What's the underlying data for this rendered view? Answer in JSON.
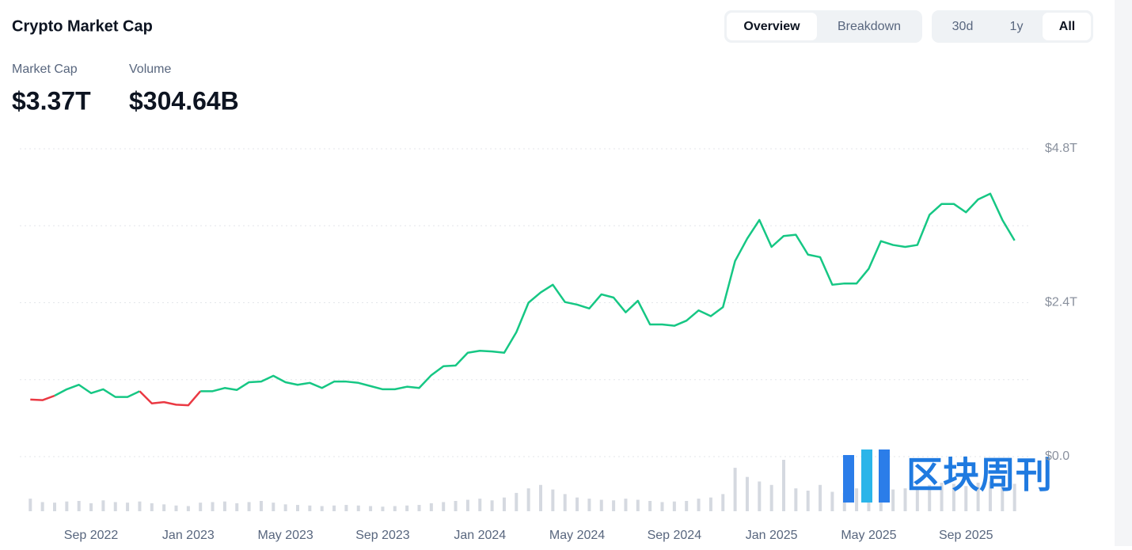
{
  "header": {
    "title": "Crypto Market Cap",
    "tabs": [
      "Overview",
      "Breakdown"
    ],
    "ranges": [
      "30d",
      "1y",
      "All"
    ],
    "stats": [
      {
        "label": "Market Cap",
        "value": "$3.37T"
      },
      {
        "label": "Volume",
        "value": "$304.64B"
      }
    ]
  },
  "watermark": "区块周刊",
  "chart_data": {
    "type": "line",
    "categories": [
      null,
      null,
      null,
      null,
      null,
      "Sep 2022",
      null,
      null,
      null,
      null,
      null,
      null,
      null,
      "Jan 2023",
      null,
      null,
      null,
      null,
      null,
      null,
      null,
      "May 2023",
      null,
      null,
      null,
      null,
      null,
      null,
      null,
      "Sep 2023",
      null,
      null,
      null,
      null,
      null,
      null,
      null,
      "Jan 2024",
      null,
      null,
      null,
      null,
      null,
      null,
      null,
      "May 2024",
      null,
      null,
      null,
      null,
      null,
      null,
      null,
      "Sep 2024",
      null,
      null,
      null,
      null,
      null,
      null,
      null,
      "Jan 2025",
      null,
      null,
      null,
      null,
      null,
      null,
      null,
      "May 2025",
      null,
      null,
      null,
      null,
      null,
      null,
      null,
      "Sep 2025",
      null,
      null,
      null,
      null
    ],
    "series": [
      {
        "name": "Market Cap",
        "up_color": "#16c784",
        "down_color": "#ea3943",
        "values": [
          0.89,
          0.88,
          0.95,
          1.05,
          1.12,
          0.99,
          1.05,
          0.93,
          0.93,
          1.02,
          0.83,
          0.85,
          0.81,
          0.8,
          1.02,
          1.02,
          1.07,
          1.04,
          1.16,
          1.17,
          1.26,
          1.16,
          1.12,
          1.15,
          1.07,
          1.17,
          1.17,
          1.15,
          1.1,
          1.05,
          1.05,
          1.09,
          1.07,
          1.27,
          1.41,
          1.42,
          1.62,
          1.65,
          1.64,
          1.62,
          1.94,
          2.4,
          2.56,
          2.68,
          2.41,
          2.37,
          2.31,
          2.53,
          2.48,
          2.25,
          2.43,
          2.06,
          2.06,
          2.04,
          2.12,
          2.28,
          2.19,
          2.33,
          3.05,
          3.4,
          3.69,
          3.27,
          3.44,
          3.46,
          3.15,
          3.11,
          2.68,
          2.7,
          2.7,
          2.93,
          3.36,
          3.3,
          3.27,
          3.3,
          3.77,
          3.94,
          3.94,
          3.81,
          4.01,
          4.1,
          3.69,
          3.37
        ]
      },
      {
        "name": "Volume",
        "color": "#d5d9e0",
        "values": [
          110,
          80,
          75,
          85,
          90,
          70,
          95,
          80,
          75,
          85,
          70,
          60,
          50,
          45,
          75,
          80,
          85,
          70,
          80,
          90,
          75,
          60,
          55,
          50,
          45,
          50,
          55,
          50,
          45,
          40,
          45,
          50,
          55,
          70,
          80,
          90,
          100,
          110,
          95,
          120,
          160,
          200,
          230,
          190,
          150,
          120,
          110,
          100,
          95,
          110,
          100,
          90,
          80,
          85,
          90,
          110,
          120,
          150,
          380,
          300,
          260,
          230,
          450,
          200,
          180,
          230,
          170,
          160,
          200,
          150,
          180,
          190,
          200,
          210,
          230,
          250,
          240,
          220,
          250,
          260,
          230,
          240
        ]
      }
    ],
    "ylim": [
      0,
      4.8
    ],
    "yticks": [
      {
        "value": 0,
        "label": "$0.0"
      },
      {
        "value": 2.4,
        "label": "$2.4T"
      },
      {
        "value": 4.8,
        "label": "$4.8T"
      }
    ],
    "minor_yticks": [
      1.2,
      3.6
    ],
    "grid": true
  }
}
